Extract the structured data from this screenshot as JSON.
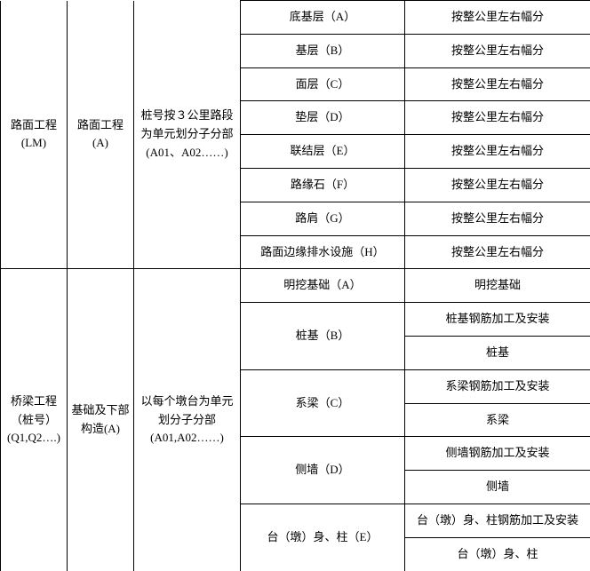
{
  "table": {
    "section1": {
      "col1": "路面工程(LM)",
      "col2": "路面工程(A)",
      "col3": "桩号按３公里路段为单元划分子分部\n(A01、A02……)",
      "rows": [
        {
          "col4": "底基层（A）",
          "col5": "按整公里左右幅分"
        },
        {
          "col4": "基层（B）",
          "col5": "按整公里左右幅分"
        },
        {
          "col4": "面层（C）",
          "col5": "按整公里左右幅分"
        },
        {
          "col4": "垫层（D）",
          "col5": "按整公里左右幅分"
        },
        {
          "col4": "联结层（E）",
          "col5": "按整公里左右幅分"
        },
        {
          "col4": "路缘石（F）",
          "col5": "按整公里左右幅分"
        },
        {
          "col4": "路肩（G）",
          "col5": "按整公里左右幅分"
        },
        {
          "col4": "路面边缘排水设施（H）",
          "col5": "按整公里左右幅分"
        }
      ]
    },
    "section2": {
      "col1": "桥梁工程（桩号）(Q1,Q2….)",
      "col2": "基础及下部构造(A)",
      "col3": "以每个墩台为单元划分子分部(A01,A02……)",
      "rows": [
        {
          "col4": "明挖基础（A）",
          "col5": "明挖基础",
          "col4_rowspan": 1
        },
        {
          "col4": "桩基（B）",
          "col5": "桩基钢筋加工及安装",
          "col4_rowspan": 2
        },
        {
          "col5": "桩基"
        },
        {
          "col4": "系梁（C）",
          "col5": "系梁钢筋加工及安装",
          "col4_rowspan": 2
        },
        {
          "col5": "系梁"
        },
        {
          "col4": "侧墙（D）",
          "col5": "侧墙钢筋加工及安装",
          "col4_rowspan": 2
        },
        {
          "col5": "侧墙"
        },
        {
          "col4": "台（墩）身、柱（E）",
          "col5": "台（墩）身、柱钢筋加工及安装",
          "col4_rowspan": 2
        },
        {
          "col5": "台（墩）身、柱"
        }
      ]
    }
  }
}
